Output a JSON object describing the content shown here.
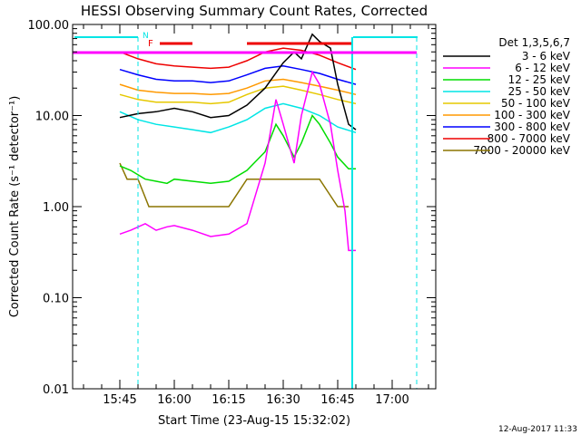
{
  "chart_data": {
    "type": "line",
    "title": "HESSI Observing Summary Count Rates, Corrected",
    "xlabel": "Start Time (23-Aug-15 15:32:02)",
    "ylabel": "Corrected Count Rate (s⁻¹ detector⁻¹)",
    "yscale": "log",
    "ylim": [
      0.01,
      100
    ],
    "xlim": [
      "15:32",
      "17:12"
    ],
    "x_ticks": [
      "15:45",
      "16:00",
      "16:15",
      "16:30",
      "16:45",
      "17:00"
    ],
    "y_ticks": [
      "0.01",
      "0.10",
      "1.00",
      "10.00",
      "100.00"
    ],
    "grid": false,
    "legend_title": "Det 1,3,5,6,7",
    "legend_position": "right",
    "footer": "12-Aug-2017 11:33",
    "flags": {
      "n_label": "N",
      "f_label": "F"
    },
    "series": [
      {
        "name": "3 - 6 keV",
        "color": "#000000",
        "x": [
          "15:45",
          "15:50",
          "15:55",
          "16:00",
          "16:05",
          "16:10",
          "16:15",
          "16:20",
          "16:25",
          "16:30",
          "16:33",
          "16:35",
          "16:38",
          "16:40",
          "16:43",
          "16:45",
          "16:48",
          "16:50"
        ],
        "values": [
          9.5,
          10.5,
          11,
          12,
          11,
          9.5,
          10,
          13,
          20,
          38,
          50,
          42,
          78,
          65,
          55,
          22,
          8,
          7
        ]
      },
      {
        "name": "6 - 12 keV",
        "color": "#ff00ff",
        "x": [
          "15:45",
          "15:48",
          "15:52",
          "15:55",
          "15:58",
          "16:00",
          "16:05",
          "16:10",
          "16:15",
          "16:20",
          "16:25",
          "16:28",
          "16:30",
          "16:33",
          "16:35",
          "16:38",
          "16:40",
          "16:43",
          "16:45",
          "16:47",
          "16:48",
          "16:50"
        ],
        "values": [
          0.5,
          0.55,
          0.65,
          0.55,
          0.6,
          0.62,
          0.55,
          0.47,
          0.5,
          0.65,
          3,
          15,
          8,
          3,
          10,
          30,
          22,
          8,
          2.5,
          0.9,
          0.33,
          0.33
        ]
      },
      {
        "name": "12 - 25 keV",
        "color": "#00dd00",
        "x": [
          "15:45",
          "15:48",
          "15:52",
          "15:55",
          "15:58",
          "16:00",
          "16:05",
          "16:10",
          "16:15",
          "16:20",
          "16:25",
          "16:28",
          "16:30",
          "16:33",
          "16:35",
          "16:38",
          "16:40",
          "16:43",
          "16:45",
          "16:48",
          "16:50"
        ],
        "values": [
          2.8,
          2.5,
          2.0,
          1.9,
          1.8,
          2.0,
          1.9,
          1.8,
          1.9,
          2.5,
          4,
          8,
          6,
          3.5,
          5,
          10,
          8,
          5,
          3.5,
          2.6,
          2.6
        ]
      },
      {
        "name": "25 - 50 keV",
        "color": "#00e5e5",
        "x": [
          "15:45",
          "15:50",
          "15:55",
          "16:00",
          "16:05",
          "16:10",
          "16:15",
          "16:20",
          "16:25",
          "16:30",
          "16:35",
          "16:40",
          "16:45",
          "16:50"
        ],
        "values": [
          11,
          9,
          8,
          7.5,
          7,
          6.5,
          7.5,
          9,
          12,
          13.5,
          12,
          10,
          7.5,
          6.5
        ]
      },
      {
        "name": "50 - 100 keV",
        "color": "#e6c800",
        "x": [
          "15:45",
          "15:50",
          "15:55",
          "16:00",
          "16:05",
          "16:10",
          "16:15",
          "16:20",
          "16:25",
          "16:30",
          "16:35",
          "16:40",
          "16:45",
          "16:50"
        ],
        "values": [
          17,
          15,
          14,
          14,
          14,
          13.5,
          14,
          17,
          20,
          21,
          19,
          17,
          15,
          13.5
        ]
      },
      {
        "name": "100 - 300 keV",
        "color": "#ff9900",
        "x": [
          "15:45",
          "15:50",
          "15:55",
          "16:00",
          "16:05",
          "16:10",
          "16:15",
          "16:20",
          "16:25",
          "16:30",
          "16:35",
          "16:40",
          "16:45",
          "16:50"
        ],
        "values": [
          22,
          19,
          18,
          17.5,
          17.5,
          17,
          17.5,
          20,
          24,
          25,
          23,
          21,
          19,
          17
        ]
      },
      {
        "name": "300 - 800 keV",
        "color": "#0000ff",
        "x": [
          "15:45",
          "15:50",
          "15:55",
          "16:00",
          "16:05",
          "16:10",
          "16:15",
          "16:20",
          "16:25",
          "16:30",
          "16:35",
          "16:40",
          "16:45",
          "16:50"
        ],
        "values": [
          32,
          28,
          25,
          24,
          24,
          23,
          24,
          28,
          33,
          35,
          32,
          29,
          25,
          22
        ]
      },
      {
        "name": "800 - 7000 keV",
        "color": "#ee0000",
        "x": [
          "15:45",
          "15:50",
          "15:55",
          "16:00",
          "16:05",
          "16:10",
          "16:15",
          "16:20",
          "16:25",
          "16:30",
          "16:35",
          "16:40",
          "16:45",
          "16:50"
        ],
        "values": [
          50,
          42,
          37,
          35,
          34,
          33,
          34,
          40,
          50,
          55,
          52,
          46,
          38,
          32
        ]
      },
      {
        "name": "7000 - 20000 keV",
        "color": "#8b7500",
        "x": [
          "15:45",
          "15:47",
          "15:50",
          "15:53",
          "15:55",
          "16:00",
          "16:05",
          "16:10",
          "16:15",
          "16:20",
          "16:25",
          "16:30",
          "16:35",
          "16:40",
          "16:45",
          "16:48"
        ],
        "values": [
          3,
          2,
          2,
          1.0,
          1.0,
          1.0,
          1.0,
          1.0,
          1.0,
          2,
          2,
          2,
          2,
          2,
          1.0,
          1.0
        ]
      }
    ]
  }
}
